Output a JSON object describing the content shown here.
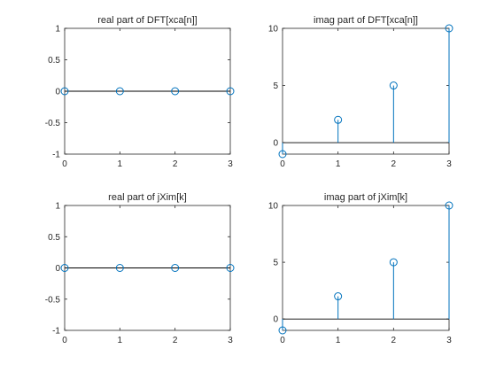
{
  "colors": {
    "stem": "#0072bd",
    "axis": "#262626",
    "background": "#ffffff"
  },
  "chart_data": [
    {
      "type": "stem",
      "title": "real part of DFT[xca[n]]",
      "x": [
        0,
        1,
        2,
        3
      ],
      "y": [
        0,
        0,
        0,
        0
      ],
      "xlim": [
        0,
        3
      ],
      "ylim": [
        -1,
        1
      ],
      "xticks": [
        0,
        1,
        2,
        3
      ],
      "yticks": [
        -1,
        -0.5,
        0,
        0.5,
        1
      ],
      "baseline": 0,
      "grid": false
    },
    {
      "type": "stem",
      "title": "imag part of DFT[xca[n]]",
      "x": [
        0,
        1,
        2,
        3
      ],
      "y": [
        -1,
        2,
        5,
        10
      ],
      "xlim": [
        0,
        3
      ],
      "ylim": [
        -1,
        10
      ],
      "xticks": [
        0,
        1,
        2,
        3
      ],
      "yticks": [
        0,
        5,
        10
      ],
      "baseline": 0,
      "grid": false
    },
    {
      "type": "stem",
      "title": "real part of jXim[k]",
      "x": [
        0,
        1,
        2,
        3
      ],
      "y": [
        0,
        0,
        0,
        0
      ],
      "xlim": [
        0,
        3
      ],
      "ylim": [
        -1,
        1
      ],
      "xticks": [
        0,
        1,
        2,
        3
      ],
      "yticks": [
        -1,
        -0.5,
        0,
        0.5,
        1
      ],
      "baseline": 0,
      "grid": false
    },
    {
      "type": "stem",
      "title": "imag part of jXim[k]",
      "x": [
        0,
        1,
        2,
        3
      ],
      "y": [
        -1,
        2,
        5,
        10
      ],
      "xlim": [
        0,
        3
      ],
      "ylim": [
        -1,
        10
      ],
      "xticks": [
        0,
        1,
        2,
        3
      ],
      "yticks": [
        0,
        5,
        10
      ],
      "baseline": 0,
      "grid": false
    }
  ]
}
